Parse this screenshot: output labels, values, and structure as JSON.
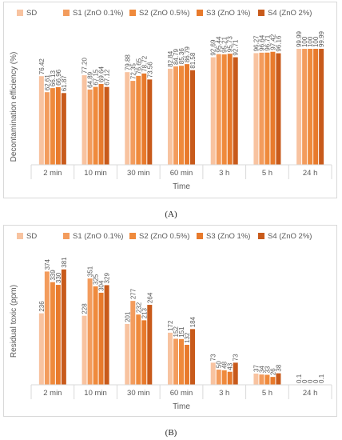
{
  "colors": [
    "#f8c3a0",
    "#f39c5d",
    "#ef8a3c",
    "#e87a2c",
    "#c85a1b"
  ],
  "panel_labels": {
    "a": "(A)",
    "b": "(B)"
  },
  "chart_data": [
    {
      "type": "bar",
      "panel": "(A)",
      "categories": [
        "2 min",
        "10 min",
        "30 min",
        "60 min",
        "3 h",
        "5 h",
        "24 h"
      ],
      "xlabel": "Time",
      "ylabel": "Decontamination efficiency (%)",
      "ylim": [
        0,
        100
      ],
      "grid": false,
      "legend": "top",
      "series": [
        {
          "name": "SD",
          "values": [
            76.42,
            77.2,
            79.88,
            82.84,
            92.69,
            96.27,
            99.99
          ],
          "labels": [
            "76.42",
            "77.20",
            "79.88",
            "82.84",
            "92.69",
            "96.27",
            "99.99"
          ]
        },
        {
          "name": "S1 (ZnO 0.1%)",
          "values": [
            62.61,
            64.89,
            72.35,
            84.79,
            95.44,
            96.64,
            100
          ],
          "labels": [
            "62.61",
            "64.89",
            "72.35",
            "84.79",
            "95.44",
            "96.64",
            "100"
          ]
        },
        {
          "name": "S2 (ZnO 0.5%)",
          "values": [
            66.13,
            67.15,
            76.65,
            85.36,
            95.21,
            96.71,
            100
          ],
          "labels": [
            "66.13",
            "67.15",
            "76.65",
            "85.36",
            "95.21",
            "96.71",
            "100"
          ]
        },
        {
          "name": "S3 (ZnO 1%)",
          "values": [
            66.96,
            69.64,
            78.72,
            86.79,
            95.73,
            97.42,
            100
          ],
          "labels": [
            "66.96",
            "69.64",
            "78.72",
            "86.79",
            "95.73",
            "97.42",
            "100"
          ]
        },
        {
          "name": "S4 (ZnO 2%)",
          "values": [
            61.87,
            67.12,
            73.56,
            81.58,
            92.71,
            96.16,
            99.99
          ],
          "labels": [
            "61.87",
            "67.12",
            "73.56",
            "81.58",
            "92.71",
            "96.16",
            "99.99"
          ]
        }
      ]
    },
    {
      "type": "bar",
      "panel": "(B)",
      "categories": [
        "2 min",
        "10 min",
        "30 min",
        "60 min",
        "3 h",
        "5 h",
        "24 h"
      ],
      "xlabel": "Time",
      "ylabel": "Residual toxic (ppm)",
      "ylim": [
        0,
        420
      ],
      "grid": false,
      "legend": "top",
      "series": [
        {
          "name": "SD",
          "values": [
            236,
            228,
            201,
            172,
            73,
            37,
            0.1
          ],
          "labels": [
            "236",
            "228",
            "201",
            "172",
            "73",
            "37",
            "0.1"
          ]
        },
        {
          "name": "S1 (ZnO 0.1%)",
          "values": [
            374,
            351,
            277,
            152,
            50,
            34,
            0
          ],
          "labels": [
            "374",
            "351",
            "277",
            "152",
            "50",
            "34",
            "0"
          ]
        },
        {
          "name": "S2 (ZnO 0.5%)",
          "values": [
            339,
            325,
            232,
            151,
            48,
            33,
            0
          ],
          "labels": [
            "339",
            "325",
            "232",
            "151",
            "48",
            "33",
            "0"
          ]
        },
        {
          "name": "S3 (ZnO 1%)",
          "values": [
            330,
            304,
            213,
            132,
            43,
            26,
            0
          ],
          "labels": [
            "330",
            "304",
            "213",
            "132",
            "43",
            "26",
            "0"
          ]
        },
        {
          "name": "S4 (ZnO 2%)",
          "values": [
            381,
            329,
            264,
            184,
            73,
            38,
            0.1
          ],
          "labels": [
            "381",
            "329",
            "264",
            "184",
            "73",
            "38",
            "0.1"
          ]
        }
      ]
    }
  ]
}
